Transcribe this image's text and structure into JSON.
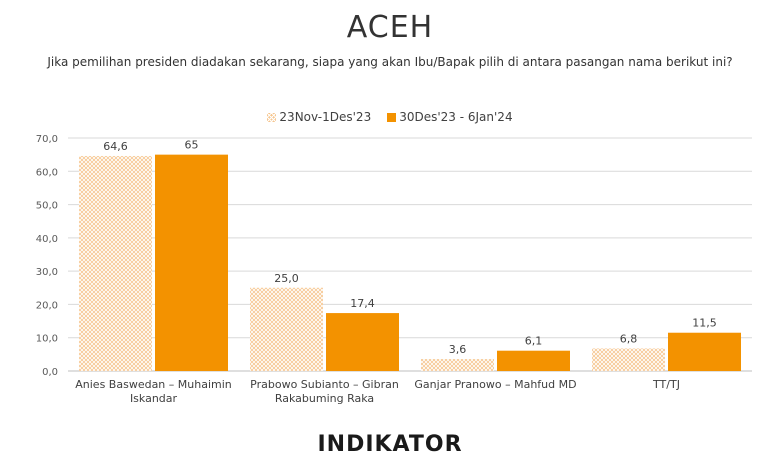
{
  "chart_data": {
    "type": "bar",
    "title": "ACEH",
    "subtitle": "Jika pemilihan presiden diadakan sekarang, siapa yang akan Ibu/Bapak pilih di antara pasangan nama berikut ini?",
    "categories": [
      [
        "Anies Baswedan – Muhaimin",
        "Iskandar"
      ],
      [
        "Prabowo Subianto – Gibran",
        "Rakabuming Raka"
      ],
      [
        "Ganjar Pranowo – Mahfud MD"
      ],
      [
        "TT/TJ"
      ]
    ],
    "series": [
      {
        "name": "23Nov-1Des'23",
        "values": [
          64.6,
          25.0,
          3.6,
          6.8
        ],
        "labels": [
          "64,6",
          "25,0",
          "3,6",
          "6,8"
        ],
        "color": "#f6c68f",
        "pattern": "crosshatch"
      },
      {
        "name": "30Des'23 - 6Jan'24",
        "values": [
          65,
          17.4,
          6.1,
          11.5
        ],
        "labels": [
          "65",
          "17,4",
          "6,1",
          "11,5"
        ],
        "color": "#f39200",
        "pattern": "solid"
      }
    ],
    "yticks": [
      "0,0",
      "10,0",
      "20,0",
      "30,0",
      "40,0",
      "50,0",
      "60,0",
      "70,0"
    ],
    "ylim": [
      0,
      70
    ],
    "xlabel": "",
    "ylabel": "",
    "grid": true,
    "legend_position": "top"
  },
  "branding": {
    "logo_text": "INDIKATOR"
  }
}
